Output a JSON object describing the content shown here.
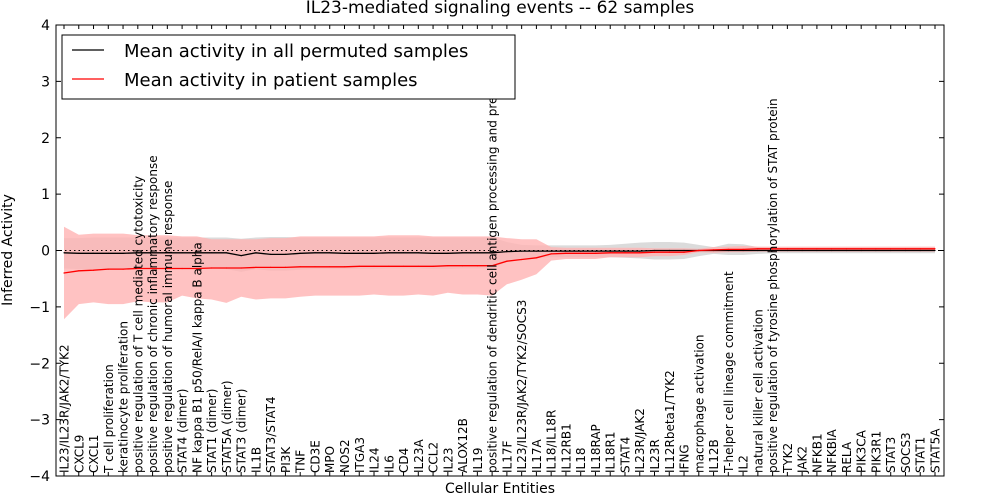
{
  "chart_data": {
    "type": "line",
    "title": "IL23-mediated signaling events -- 62 samples",
    "xlabel": "Cellular Entities",
    "ylabel": "Inferred Activity",
    "ylim": [
      -4,
      4
    ],
    "yticks": [
      -4,
      -3,
      -2,
      -1,
      0,
      1,
      2,
      3,
      4
    ],
    "ytick_labels": [
      "−4",
      "−3",
      "−2",
      "−1",
      "0",
      "1",
      "2",
      "3",
      "4"
    ],
    "grid": false,
    "legend_position": "top-left",
    "reference_line": 0,
    "categories": [
      "IL23/IL23R/JAK2/TYK2",
      "CXCL9",
      "CXCL1",
      "T cell proliferation",
      "keratinocyte proliferation",
      "positive regulation of T cell mediated cytotoxicity",
      "positive regulation of chronic inflammatory response",
      "positive regulation of humoral immune response",
      "STAT4 (dimer)",
      "NF kappa B1 p50/RelA/I kappa B alpha",
      "STAT1 (dimer)",
      "STAT5A (dimer)",
      "STAT3 (dimer)",
      "IL1B",
      "STAT3/STAT4",
      "PI3K",
      "TNF",
      "CD3E",
      "MPO",
      "NOS2",
      "ITGA3",
      "IL24",
      "IL6",
      "CD4",
      "IL23A",
      "CCL2",
      "IL23",
      "ALOX12B",
      "IL19",
      "positive regulation of dendritic cell antigen processing and presentation",
      "IL17F",
      "IL23/IL23R/JAK2/TYK2/SOCS3",
      "IL17A",
      "IL18/IL18R",
      "IL12RB1",
      "IL18",
      "IL18RAP",
      "IL18R1",
      "STAT4",
      "IL23R/JAK2",
      "IL23R",
      "IL12Rbeta1/TYK2",
      "IFNG",
      "macrophage activation",
      "IL12B",
      "T-helper cell lineage commitment",
      "IL2",
      "natural killer cell activation",
      "positive regulation of tyrosine phosphorylation of STAT protein",
      "TYK2",
      "JAK2",
      "NFKB1",
      "NFKBIA",
      "RELA",
      "PIK3CA",
      "PIK3R1",
      "STAT3",
      "SOCS3",
      "STAT1",
      "STAT5A"
    ],
    "series": [
      {
        "name": "Mean activity in all permuted samples",
        "color": "#000000",
        "band_color": "#c8c8c8",
        "values": [
          -0.04,
          -0.05,
          -0.05,
          -0.05,
          -0.05,
          -0.04,
          -0.04,
          -0.04,
          -0.04,
          -0.04,
          -0.04,
          -0.04,
          -0.09,
          -0.04,
          -0.07,
          -0.07,
          -0.05,
          -0.04,
          -0.04,
          -0.05,
          -0.05,
          -0.05,
          -0.04,
          -0.04,
          -0.04,
          -0.05,
          -0.05,
          -0.04,
          -0.04,
          -0.04,
          -0.02,
          -0.01,
          -0.01,
          -0.01,
          -0.01,
          -0.01,
          -0.01,
          -0.01,
          -0.01,
          -0.01,
          0.0,
          0.0,
          0.0,
          0.0,
          0.0,
          0.0,
          0.0,
          0.0,
          0.0,
          0.0,
          0.0,
          0.0,
          0.0,
          0.0,
          0.0,
          0.0,
          0.0,
          0.0,
          0.0,
          0.0
        ],
        "upper": [
          0.22,
          0.22,
          0.23,
          0.23,
          0.23,
          0.23,
          0.23,
          0.23,
          0.23,
          0.23,
          0.23,
          0.23,
          0.21,
          0.23,
          0.24,
          0.24,
          0.23,
          0.23,
          0.23,
          0.23,
          0.23,
          0.23,
          0.23,
          0.23,
          0.23,
          0.23,
          0.23,
          0.23,
          0.23,
          0.23,
          0.15,
          0.1,
          0.09,
          0.09,
          0.09,
          0.09,
          0.09,
          0.1,
          0.12,
          0.14,
          0.15,
          0.15,
          0.14,
          0.1,
          0.06,
          0.12,
          0.11,
          0.06,
          0.05,
          0.05,
          0.05,
          0.05,
          0.05,
          0.05,
          0.05,
          0.05,
          0.05,
          0.05,
          0.05,
          0.05
        ],
        "lower": [
          -0.32,
          -0.33,
          -0.33,
          -0.33,
          -0.33,
          -0.32,
          -0.32,
          -0.32,
          -0.32,
          -0.32,
          -0.32,
          -0.33,
          -0.38,
          -0.33,
          -0.36,
          -0.36,
          -0.34,
          -0.33,
          -0.33,
          -0.33,
          -0.33,
          -0.33,
          -0.32,
          -0.32,
          -0.32,
          -0.33,
          -0.33,
          -0.32,
          -0.32,
          -0.32,
          -0.2,
          -0.14,
          -0.13,
          -0.12,
          -0.12,
          -0.12,
          -0.12,
          -0.12,
          -0.13,
          -0.14,
          -0.16,
          -0.16,
          -0.15,
          -0.1,
          -0.06,
          -0.08,
          -0.08,
          -0.06,
          -0.05,
          -0.05,
          -0.05,
          -0.05,
          -0.05,
          -0.05,
          -0.05,
          -0.05,
          -0.05,
          -0.05,
          -0.05,
          -0.05
        ]
      },
      {
        "name": "Mean activity in patient samples",
        "color": "#ff0000",
        "band_color": "#ffb3b3",
        "values": [
          -0.4,
          -0.36,
          -0.35,
          -0.33,
          -0.33,
          -0.32,
          -0.32,
          -0.32,
          -0.32,
          -0.32,
          -0.31,
          -0.31,
          -0.31,
          -0.3,
          -0.3,
          -0.3,
          -0.29,
          -0.29,
          -0.29,
          -0.29,
          -0.28,
          -0.28,
          -0.28,
          -0.28,
          -0.28,
          -0.28,
          -0.27,
          -0.27,
          -0.27,
          -0.27,
          -0.19,
          -0.16,
          -0.13,
          -0.06,
          -0.05,
          -0.05,
          -0.05,
          -0.04,
          -0.04,
          -0.04,
          -0.03,
          -0.03,
          -0.03,
          0.0,
          0.01,
          0.02,
          0.02,
          0.03,
          0.03,
          0.03,
          0.03,
          0.03,
          0.03,
          0.03,
          0.03,
          0.03,
          0.03,
          0.03,
          0.03,
          0.03
        ],
        "upper": [
          0.42,
          0.28,
          0.3,
          0.3,
          0.3,
          0.27,
          0.27,
          0.27,
          0.25,
          0.25,
          0.2,
          0.2,
          0.2,
          0.2,
          0.22,
          0.22,
          0.25,
          0.25,
          0.25,
          0.25,
          0.25,
          0.25,
          0.27,
          0.27,
          0.27,
          0.25,
          0.25,
          0.25,
          0.25,
          0.25,
          0.22,
          0.2,
          0.2,
          0.06,
          0.05,
          0.05,
          0.05,
          0.05,
          0.05,
          0.05,
          0.04,
          0.04,
          0.04,
          0.03,
          0.06,
          0.07,
          0.08,
          0.07,
          0.07,
          0.07,
          0.07,
          0.07,
          0.07,
          0.07,
          0.07,
          0.07,
          0.07,
          0.07,
          0.07,
          0.07
        ],
        "lower": [
          -1.22,
          -0.95,
          -0.92,
          -0.95,
          -0.95,
          -0.9,
          -0.92,
          -0.92,
          -0.8,
          -0.85,
          -0.87,
          -0.93,
          -0.82,
          -0.87,
          -0.85,
          -0.85,
          -0.82,
          -0.8,
          -0.8,
          -0.8,
          -0.8,
          -0.78,
          -0.8,
          -0.8,
          -0.78,
          -0.8,
          -0.75,
          -0.78,
          -0.78,
          -0.8,
          -0.6,
          -0.52,
          -0.42,
          -0.18,
          -0.15,
          -0.15,
          -0.15,
          -0.12,
          -0.12,
          -0.12,
          -0.1,
          -0.1,
          -0.08,
          -0.03,
          -0.04,
          -0.03,
          -0.03,
          -0.02,
          -0.02,
          -0.02,
          -0.02,
          -0.02,
          -0.02,
          -0.02,
          -0.02,
          -0.02,
          -0.02,
          -0.02,
          -0.02,
          -0.02
        ]
      }
    ]
  }
}
